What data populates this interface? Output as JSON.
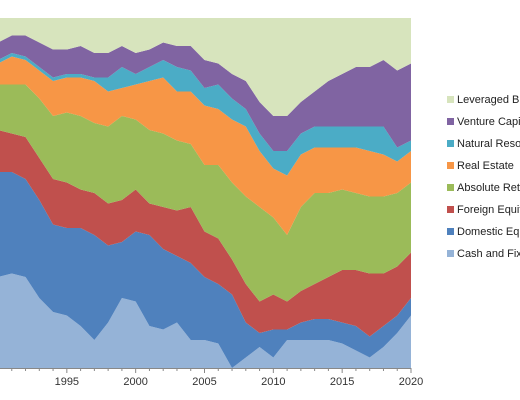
{
  "chart_data": {
    "type": "area",
    "stacked": true,
    "percent_stacked": true,
    "x": [
      1990,
      1991,
      1992,
      1993,
      1994,
      1995,
      1996,
      1997,
      1998,
      1999,
      2000,
      2001,
      2002,
      2003,
      2004,
      2005,
      2006,
      2007,
      2008,
      2009,
      2010,
      2011,
      2012,
      2013,
      2014,
      2015,
      2016,
      2017,
      2018,
      2019,
      2020
    ],
    "xlim": [
      1990,
      2020
    ],
    "ylim": [
      0,
      100
    ],
    "xticks": [
      1995,
      2000,
      2005,
      2010,
      2015,
      2020
    ],
    "grid": false,
    "legend_position": "right",
    "series": [
      {
        "name": "Cash and Fixed Income",
        "color": "#95b3d7",
        "values": [
          26,
          27,
          26,
          20,
          16,
          15,
          12,
          8,
          13,
          20,
          19,
          12,
          11,
          13,
          8,
          8,
          7,
          0,
          3,
          6,
          3,
          8,
          8,
          8,
          8,
          7,
          5,
          3,
          6,
          10,
          15
        ]
      },
      {
        "name": "Domestic Equity",
        "color": "#4f81bd",
        "values": [
          30,
          29,
          28,
          28,
          25,
          25,
          28,
          30,
          22,
          16,
          20,
          26,
          23,
          19,
          22,
          18,
          17,
          21,
          10,
          4,
          8,
          3,
          5,
          6,
          6,
          6,
          7,
          6,
          6,
          5,
          5
        ]
      },
      {
        "name": "Foreign Equity",
        "color": "#c0504d",
        "values": [
          12,
          11,
          12,
          12,
          13,
          13,
          11,
          12,
          12,
          12,
          12,
          9,
          12,
          13,
          16,
          13,
          13,
          10,
          11,
          9,
          10,
          8,
          9,
          10,
          12,
          15,
          16,
          18,
          15,
          14,
          13
        ]
      },
      {
        "name": "Absolute Return",
        "color": "#9bbb59",
        "values": [
          13,
          14,
          15,
          17,
          18,
          20,
          21,
          20,
          22,
          24,
          20,
          21,
          21,
          20,
          18,
          19,
          21,
          22,
          25,
          27,
          22,
          19,
          24,
          26,
          24,
          23,
          22,
          22,
          22,
          21,
          20
        ]
      },
      {
        "name": "Real Estate",
        "color": "#f79646",
        "values": [
          6,
          8,
          7,
          8,
          10,
          10,
          11,
          12,
          10,
          8,
          10,
          14,
          16,
          14,
          15,
          17,
          16,
          18,
          20,
          16,
          14,
          17,
          15,
          13,
          13,
          12,
          13,
          13,
          12,
          9,
          9
        ]
      },
      {
        "name": "Natural Resources",
        "color": "#4bacc6",
        "values": [
          1,
          1,
          1,
          1,
          1,
          1,
          1,
          1,
          4,
          6,
          3,
          4,
          5,
          7,
          6,
          5,
          7,
          6,
          5,
          5,
          5,
          7,
          6,
          6,
          6,
          6,
          6,
          7,
          8,
          4,
          3
        ]
      },
      {
        "name": "Venture Capital",
        "color": "#8064a2",
        "values": [
          5,
          5,
          6,
          7,
          8,
          7,
          8,
          7,
          7,
          6,
          6,
          5,
          5,
          6,
          7,
          8,
          6,
          7,
          8,
          9,
          10,
          10,
          9,
          10,
          13,
          15,
          17,
          17,
          19,
          22,
          22
        ]
      },
      {
        "name": "Leveraged Buyouts",
        "color": "#d7e4bd",
        "values": [
          7,
          5,
          5,
          7,
          9,
          9,
          8,
          10,
          10,
          8,
          10,
          9,
          7,
          8,
          8,
          12,
          13,
          16,
          18,
          24,
          28,
          28,
          24,
          21,
          18,
          16,
          14,
          14,
          12,
          15,
          13
        ]
      }
    ]
  }
}
